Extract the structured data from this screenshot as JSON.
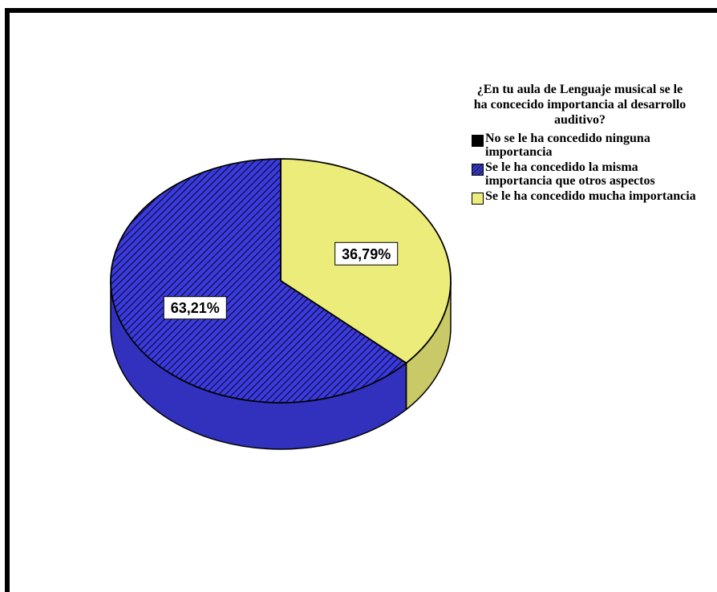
{
  "chart_data": {
    "type": "pie",
    "title": "",
    "legend_title": "¿En tu aula de Lenguaje musical se le ha concecido importancia al desarrollo auditivo?",
    "legend_position": "right",
    "style": "3d",
    "slices": [
      {
        "label": "No se le ha concedido ninguna importancia",
        "value": 0,
        "display": "",
        "color": "#000000"
      },
      {
        "label": "Se le ha concedido la misma importancia que otros aspectos",
        "value": 63.21,
        "display": "63,21%",
        "color": "#3a3ae0"
      },
      {
        "label": "Se le ha concedido mucha importancia",
        "value": 36.79,
        "display": "36,79%",
        "color": "#ecec7a"
      }
    ]
  }
}
